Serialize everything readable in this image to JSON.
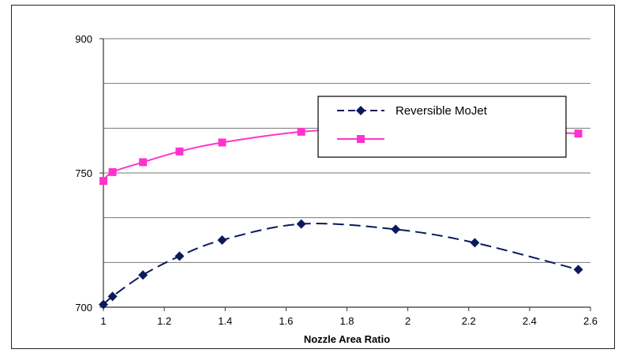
{
  "chart_data": {
    "type": "line",
    "title": "",
    "xlabel": "Nozzle Area Ratio",
    "ylabel": "",
    "xlim": [
      1,
      2.6
    ],
    "ylim": [
      700,
      900
    ],
    "xticks": [
      "1",
      "1.2",
      "1.4",
      "1.6",
      "1.8",
      "2",
      "2.2",
      "2.4",
      "2.6"
    ],
    "yticks": [
      "700",
      "750",
      "900"
    ],
    "grid": "horizontal",
    "legend_position": "right",
    "series": [
      {
        "name": "Reversible  MoJet",
        "color": "#0a1a5c",
        "marker": "diamond",
        "line": "dashed",
        "x": [
          1.0,
          1.03,
          1.13,
          1.25,
          1.39,
          1.65,
          1.96,
          2.22,
          2.56
        ],
        "y": [
          701,
          704,
          712,
          719,
          725,
          731,
          729,
          724,
          714
        ]
      },
      {
        "name": "",
        "color": "#ff33cc",
        "marker": "square",
        "line": "solid",
        "x": [
          1.0,
          1.03,
          1.13,
          1.25,
          1.39,
          1.65,
          1.96,
          2.22,
          2.56
        ],
        "y": [
          747,
          751,
          762,
          774,
          784,
          796,
          801,
          799,
          794
        ]
      }
    ]
  }
}
